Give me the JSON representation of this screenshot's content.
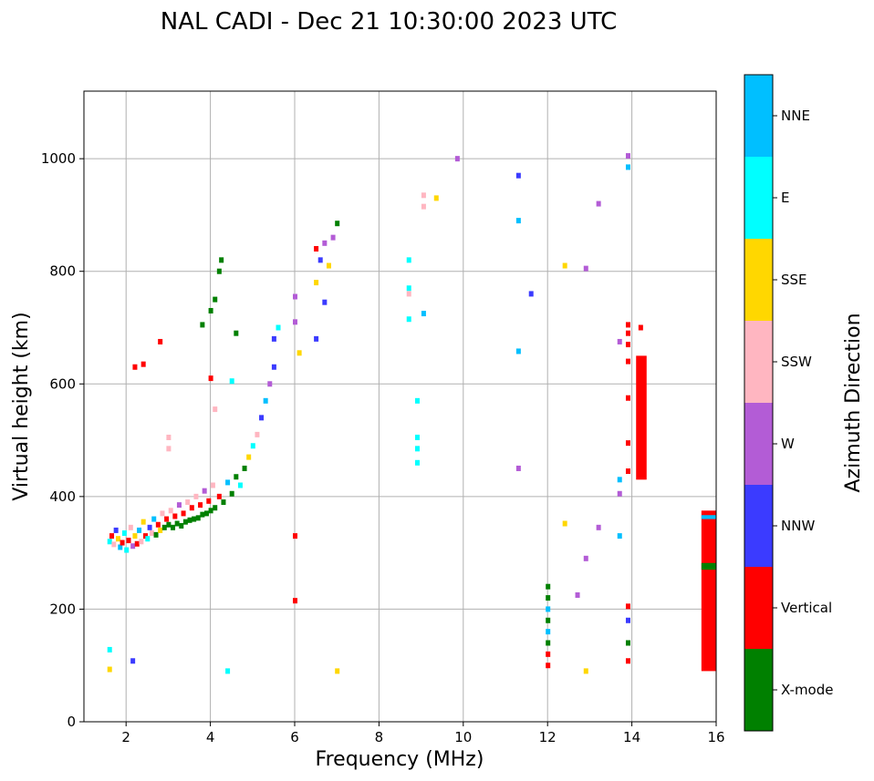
{
  "chart_data": {
    "type": "scatter",
    "title": "NAL CADI - Dec 21 10:30:00 2023 UTC",
    "xlabel": "Frequency (MHz)",
    "ylabel": "Virtual height (km)",
    "xlim": [
      1,
      16
    ],
    "ylim": [
      0,
      1120
    ],
    "xticks": [
      2,
      4,
      6,
      8,
      10,
      12,
      14,
      16
    ],
    "yticks": [
      0,
      200,
      400,
      600,
      800,
      1000
    ],
    "grid": true,
    "colorbar": {
      "title": "Azimuth Direction",
      "categories": [
        {
          "name": "X-mode",
          "color": "#008000"
        },
        {
          "name": "Vertical",
          "color": "#ff0000"
        },
        {
          "name": "NNW",
          "color": "#3b3bff"
        },
        {
          "name": "W",
          "color": "#b35cd6"
        },
        {
          "name": "SSW",
          "color": "#ffb6c1"
        },
        {
          "name": "SSE",
          "color": "#ffd700"
        },
        {
          "name": "E",
          "color": "#00ffff"
        },
        {
          "name": "NNE",
          "color": "#00bfff"
        }
      ]
    },
    "points": [
      {
        "f": 1.6,
        "h": 320,
        "c": 6
      },
      {
        "f": 1.65,
        "h": 330,
        "c": 1
      },
      {
        "f": 1.7,
        "h": 315,
        "c": 4
      },
      {
        "f": 1.75,
        "h": 340,
        "c": 2
      },
      {
        "f": 1.8,
        "h": 325,
        "c": 5
      },
      {
        "f": 1.85,
        "h": 310,
        "c": 7
      },
      {
        "f": 1.9,
        "h": 318,
        "c": 1
      },
      {
        "f": 1.95,
        "h": 335,
        "c": 6
      },
      {
        "f": 2.0,
        "h": 305,
        "c": 6
      },
      {
        "f": 2.05,
        "h": 322,
        "c": 1
      },
      {
        "f": 2.1,
        "h": 345,
        "c": 4
      },
      {
        "f": 2.15,
        "h": 312,
        "c": 3
      },
      {
        "f": 2.2,
        "h": 330,
        "c": 5
      },
      {
        "f": 2.25,
        "h": 316,
        "c": 1
      },
      {
        "f": 2.3,
        "h": 340,
        "c": 7
      },
      {
        "f": 2.35,
        "h": 320,
        "c": 4
      },
      {
        "f": 2.4,
        "h": 355,
        "c": 5
      },
      {
        "f": 2.45,
        "h": 330,
        "c": 1
      },
      {
        "f": 2.5,
        "h": 325,
        "c": 6
      },
      {
        "f": 2.55,
        "h": 345,
        "c": 2
      },
      {
        "f": 2.6,
        "h": 335,
        "c": 4
      },
      {
        "f": 2.65,
        "h": 360,
        "c": 7
      },
      {
        "f": 2.7,
        "h": 332,
        "c": 0
      },
      {
        "f": 2.75,
        "h": 350,
        "c": 1
      },
      {
        "f": 2.8,
        "h": 340,
        "c": 5
      },
      {
        "f": 2.85,
        "h": 370,
        "c": 4
      },
      {
        "f": 2.9,
        "h": 345,
        "c": 0
      },
      {
        "f": 2.95,
        "h": 360,
        "c": 1
      },
      {
        "f": 3.0,
        "h": 350,
        "c": 0
      },
      {
        "f": 3.05,
        "h": 375,
        "c": 4
      },
      {
        "f": 3.1,
        "h": 345,
        "c": 0
      },
      {
        "f": 3.15,
        "h": 365,
        "c": 1
      },
      {
        "f": 3.2,
        "h": 352,
        "c": 0
      },
      {
        "f": 3.25,
        "h": 385,
        "c": 3
      },
      {
        "f": 3.3,
        "h": 348,
        "c": 0
      },
      {
        "f": 3.35,
        "h": 370,
        "c": 1
      },
      {
        "f": 3.4,
        "h": 355,
        "c": 0
      },
      {
        "f": 3.45,
        "h": 390,
        "c": 4
      },
      {
        "f": 3.5,
        "h": 358,
        "c": 0
      },
      {
        "f": 3.55,
        "h": 380,
        "c": 1
      },
      {
        "f": 3.6,
        "h": 360,
        "c": 0
      },
      {
        "f": 3.65,
        "h": 400,
        "c": 4
      },
      {
        "f": 3.7,
        "h": 362,
        "c": 0
      },
      {
        "f": 3.75,
        "h": 385,
        "c": 1
      },
      {
        "f": 3.8,
        "h": 368,
        "c": 0
      },
      {
        "f": 3.85,
        "h": 410,
        "c": 3
      },
      {
        "f": 3.9,
        "h": 370,
        "c": 0
      },
      {
        "f": 3.95,
        "h": 392,
        "c": 1
      },
      {
        "f": 4.0,
        "h": 375,
        "c": 0
      },
      {
        "f": 4.05,
        "h": 420,
        "c": 4
      },
      {
        "f": 4.1,
        "h": 380,
        "c": 0
      },
      {
        "f": 4.2,
        "h": 400,
        "c": 1
      },
      {
        "f": 4.3,
        "h": 390,
        "c": 0
      },
      {
        "f": 4.4,
        "h": 425,
        "c": 7
      },
      {
        "f": 4.5,
        "h": 405,
        "c": 0
      },
      {
        "f": 4.6,
        "h": 435,
        "c": 0
      },
      {
        "f": 4.7,
        "h": 420,
        "c": 6
      },
      {
        "f": 4.8,
        "h": 450,
        "c": 0
      },
      {
        "f": 4.9,
        "h": 470,
        "c": 5
      },
      {
        "f": 5.0,
        "h": 490,
        "c": 6
      },
      {
        "f": 5.1,
        "h": 510,
        "c": 4
      },
      {
        "f": 5.2,
        "h": 540,
        "c": 2
      },
      {
        "f": 5.3,
        "h": 570,
        "c": 7
      },
      {
        "f": 5.4,
        "h": 600,
        "c": 3
      },
      {
        "f": 5.5,
        "h": 630,
        "c": 2
      },
      {
        "f": 3.0,
        "h": 505,
        "c": 4
      },
      {
        "f": 3.0,
        "h": 485,
        "c": 4
      },
      {
        "f": 2.2,
        "h": 630,
        "c": 1
      },
      {
        "f": 2.4,
        "h": 635,
        "c": 1
      },
      {
        "f": 2.8,
        "h": 675,
        "c": 1
      },
      {
        "f": 4.0,
        "h": 730,
        "c": 0
      },
      {
        "f": 4.1,
        "h": 750,
        "c": 0
      },
      {
        "f": 4.2,
        "h": 800,
        "c": 0
      },
      {
        "f": 4.25,
        "h": 820,
        "c": 0
      },
      {
        "f": 3.8,
        "h": 705,
        "c": 0
      },
      {
        "f": 6.0,
        "h": 755,
        "c": 3
      },
      {
        "f": 6.0,
        "h": 710,
        "c": 3
      },
      {
        "f": 6.5,
        "h": 780,
        "c": 5
      },
      {
        "f": 6.6,
        "h": 820,
        "c": 2
      },
      {
        "f": 6.7,
        "h": 850,
        "c": 3
      },
      {
        "f": 6.8,
        "h": 810,
        "c": 5
      },
      {
        "f": 6.9,
        "h": 860,
        "c": 3
      },
      {
        "f": 7.0,
        "h": 885,
        "c": 0
      },
      {
        "f": 6.7,
        "h": 745,
        "c": 2
      },
      {
        "f": 6.5,
        "h": 840,
        "c": 1
      },
      {
        "f": 8.7,
        "h": 820,
        "c": 6
      },
      {
        "f": 8.7,
        "h": 770,
        "c": 6
      },
      {
        "f": 8.7,
        "h": 760,
        "c": 4
      },
      {
        "f": 8.7,
        "h": 715,
        "c": 6
      },
      {
        "f": 8.9,
        "h": 570,
        "c": 6
      },
      {
        "f": 8.9,
        "h": 505,
        "c": 6
      },
      {
        "f": 8.9,
        "h": 485,
        "c": 6
      },
      {
        "f": 8.9,
        "h": 460,
        "c": 6
      },
      {
        "f": 9.05,
        "h": 935,
        "c": 4
      },
      {
        "f": 9.05,
        "h": 915,
        "c": 4
      },
      {
        "f": 9.05,
        "h": 725,
        "c": 7
      },
      {
        "f": 9.35,
        "h": 930,
        "c": 5
      },
      {
        "f": 9.85,
        "h": 1000,
        "c": 3
      },
      {
        "f": 11.3,
        "h": 970,
        "c": 2
      },
      {
        "f": 11.3,
        "h": 890,
        "c": 7
      },
      {
        "f": 11.3,
        "h": 658,
        "c": 7
      },
      {
        "f": 11.3,
        "h": 450,
        "c": 3
      },
      {
        "f": 11.6,
        "h": 760,
        "c": 2
      },
      {
        "f": 12.4,
        "h": 810,
        "c": 5
      },
      {
        "f": 12.4,
        "h": 352,
        "c": 5
      },
      {
        "f": 12.9,
        "h": 805,
        "c": 3
      },
      {
        "f": 13.2,
        "h": 920,
        "c": 3
      },
      {
        "f": 13.2,
        "h": 345,
        "c": 3
      },
      {
        "f": 12.9,
        "h": 290,
        "c": 3
      },
      {
        "f": 12.7,
        "h": 225,
        "c": 3
      },
      {
        "f": 12.9,
        "h": 90,
        "c": 5
      },
      {
        "f": 12.0,
        "h": 240,
        "c": 0
      },
      {
        "f": 12.0,
        "h": 220,
        "c": 0
      },
      {
        "f": 12.0,
        "h": 200,
        "c": 7
      },
      {
        "f": 12.0,
        "h": 180,
        "c": 0
      },
      {
        "f": 12.0,
        "h": 160,
        "c": 7
      },
      {
        "f": 12.0,
        "h": 140,
        "c": 0
      },
      {
        "f": 12.0,
        "h": 120,
        "c": 1
      },
      {
        "f": 12.0,
        "h": 100,
        "c": 1
      },
      {
        "f": 13.7,
        "h": 675,
        "c": 3
      },
      {
        "f": 13.7,
        "h": 430,
        "c": 7
      },
      {
        "f": 13.7,
        "h": 405,
        "c": 3
      },
      {
        "f": 13.7,
        "h": 330,
        "c": 7
      },
      {
        "f": 13.9,
        "h": 1005,
        "c": 3
      },
      {
        "f": 13.9,
        "h": 985,
        "c": 7
      },
      {
        "f": 13.9,
        "h": 705,
        "c": 1
      },
      {
        "f": 13.9,
        "h": 690,
        "c": 1
      },
      {
        "f": 13.9,
        "h": 670,
        "c": 1
      },
      {
        "f": 13.9,
        "h": 640,
        "c": 1
      },
      {
        "f": 13.9,
        "h": 575,
        "c": 1
      },
      {
        "f": 13.9,
        "h": 495,
        "c": 1
      },
      {
        "f": 13.9,
        "h": 445,
        "c": 1
      },
      {
        "f": 13.9,
        "h": 205,
        "c": 1
      },
      {
        "f": 13.9,
        "h": 180,
        "c": 2
      },
      {
        "f": 13.9,
        "h": 140,
        "c": 0
      },
      {
        "f": 13.9,
        "h": 108,
        "c": 1
      },
      {
        "f": 14.2,
        "h": 700,
        "c": 1
      },
      {
        "f": 14.2,
        "h": 640,
        "c": 1
      },
      {
        "f": 1.6,
        "h": 128,
        "c": 6
      },
      {
        "f": 1.6,
        "h": 93,
        "c": 5
      },
      {
        "f": 2.15,
        "h": 108,
        "c": 2
      },
      {
        "f": 4.4,
        "h": 90,
        "c": 6
      },
      {
        "f": 7.0,
        "h": 90,
        "c": 5
      },
      {
        "f": 6.0,
        "h": 330,
        "c": 1
      },
      {
        "f": 6.0,
        "h": 215,
        "c": 1
      },
      {
        "f": 6.1,
        "h": 655,
        "c": 5
      },
      {
        "f": 6.5,
        "h": 680,
        "c": 2
      },
      {
        "f": 4.0,
        "h": 610,
        "c": 1
      },
      {
        "f": 4.1,
        "h": 555,
        "c": 4
      },
      {
        "f": 4.6,
        "h": 690,
        "c": 0
      },
      {
        "f": 5.6,
        "h": 700,
        "c": 6
      },
      {
        "f": 5.5,
        "h": 680,
        "c": 2
      },
      {
        "f": 4.5,
        "h": 605,
        "c": 6
      }
    ],
    "bars": [
      {
        "f0": 14.1,
        "f1": 14.35,
        "h0": 430,
        "h1": 650,
        "c": 1
      },
      {
        "f0": 15.65,
        "f1": 16.0,
        "h0": 90,
        "h1": 375,
        "c": 1
      },
      {
        "f0": 15.65,
        "f1": 16.0,
        "h0": 270,
        "h1": 282,
        "c": 0
      },
      {
        "f0": 15.65,
        "f1": 16.0,
        "h0": 360,
        "h1": 367,
        "c": 7
      }
    ]
  }
}
